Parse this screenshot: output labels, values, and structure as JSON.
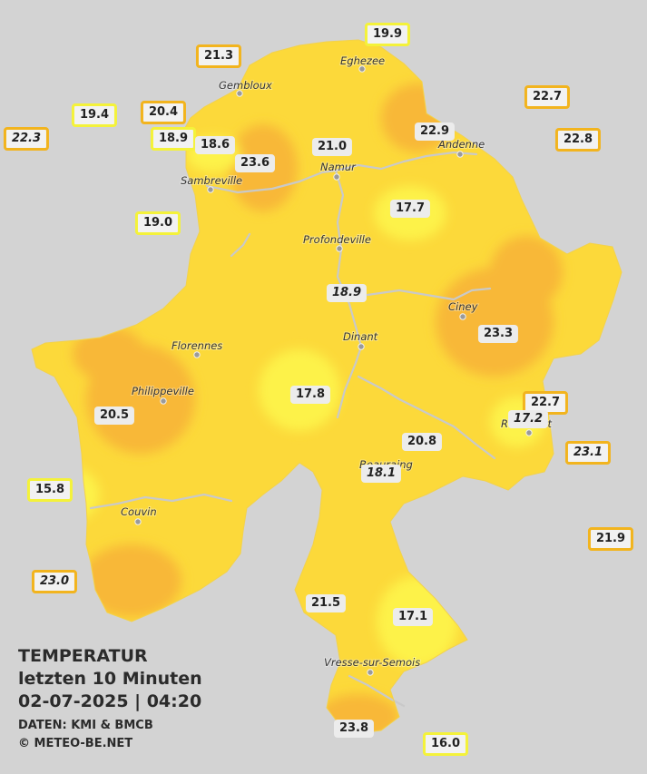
{
  "legend": {
    "title": "TEMPERATUR",
    "subtitle": "letzten 10 Minuten",
    "datetime": "02-07-2025  |  04:20",
    "source": "DATEN: KMI & BMCB",
    "copyright": "© METEO-BE.NET"
  },
  "colors": {
    "background": "#d3d3d3",
    "region_base": "#fcd93a",
    "warm_zone": "#f8b838",
    "cool_zone": "#fdf24a",
    "river": "#c9c9c9",
    "badge_border_orange": "#f2b41e",
    "badge_border_yellow": "#f4f23a"
  },
  "cities": [
    {
      "name": "Eghezee"
    },
    {
      "name": "Gembloux"
    },
    {
      "name": "Andenne"
    },
    {
      "name": "Namur"
    },
    {
      "name": "Sambreville"
    },
    {
      "name": "Profondeville"
    },
    {
      "name": "Ciney"
    },
    {
      "name": "Dinant"
    },
    {
      "name": "Florennes"
    },
    {
      "name": "Philippeville"
    },
    {
      "name": "Rochefort"
    },
    {
      "name": "Beauraing"
    },
    {
      "name": "Couvin"
    },
    {
      "name": "Vresse-sur-Semois"
    }
  ],
  "stations": [
    {
      "value": "19.9"
    },
    {
      "value": "21.3"
    },
    {
      "value": "22.7"
    },
    {
      "value": "19.4"
    },
    {
      "value": "20.4"
    },
    {
      "value": "22.3"
    },
    {
      "value": "18.9"
    },
    {
      "value": "18.6"
    },
    {
      "value": "22.9"
    },
    {
      "value": "22.8"
    },
    {
      "value": "21.0"
    },
    {
      "value": "23.6"
    },
    {
      "value": "17.7"
    },
    {
      "value": "19.0"
    },
    {
      "value": "18.9"
    },
    {
      "value": "23.3"
    },
    {
      "value": "17.8"
    },
    {
      "value": "22.7"
    },
    {
      "value": "17.2"
    },
    {
      "value": "20.5"
    },
    {
      "value": "20.8"
    },
    {
      "value": "23.1"
    },
    {
      "value": "18.1"
    },
    {
      "value": "15.8"
    },
    {
      "value": "21.9"
    },
    {
      "value": "23.0"
    },
    {
      "value": "21.5"
    },
    {
      "value": "17.1"
    },
    {
      "value": "23.8"
    },
    {
      "value": "16.0"
    }
  ]
}
